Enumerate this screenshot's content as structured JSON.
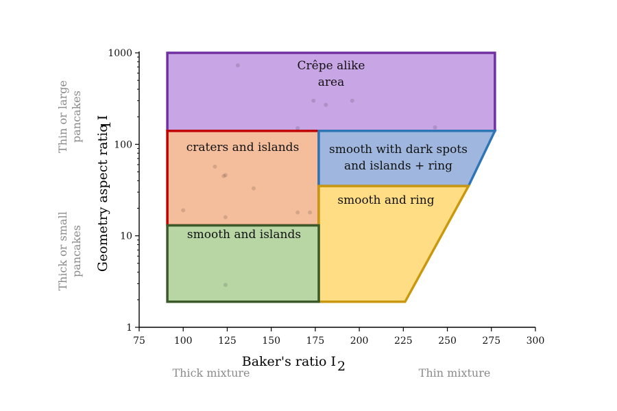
{
  "chart_data": {
    "type": "scatter",
    "xlabel": "Baker's ratio I",
    "xlabel_subscript": "2",
    "ylabel": "Geometry aspect ratio I",
    "ylabel_subscript": "1",
    "xlim": [
      75,
      300
    ],
    "ylim": [
      1,
      1000
    ],
    "yscale": "log",
    "x_ticks": [
      "75",
      "100",
      "125",
      "150",
      "175",
      "200",
      "225",
      "250",
      "275",
      "300"
    ],
    "y_ticks": [
      "1",
      "10",
      "100",
      "1000"
    ],
    "grid": false,
    "side_notes": {
      "y_high": [
        "Thin or large",
        "pancakes"
      ],
      "y_low": [
        "Thick or small",
        "pancakes"
      ],
      "x_low": "Thick mixture",
      "x_high": "Thin mixture"
    },
    "regions": [
      {
        "label": [
          "Crêpe alike",
          "area"
        ],
        "fill": "#c8a5e4",
        "stroke": "#7030a0",
        "polygon": [
          [
            91,
            1000
          ],
          [
            277,
            1000
          ],
          [
            277,
            140
          ],
          [
            91,
            140
          ]
        ]
      },
      {
        "label": [
          "craters and islands"
        ],
        "fill": "#f4be9c",
        "stroke": "#c00000",
        "polygon": [
          [
            91,
            140
          ],
          [
            177,
            140
          ],
          [
            177,
            13
          ],
          [
            91,
            13
          ]
        ]
      },
      {
        "label": [
          "smooth with dark spots",
          "and islands + ring"
        ],
        "fill": "#9fb7de",
        "stroke": "#2e75b6",
        "polygon": [
          [
            177,
            140
          ],
          [
            277,
            140
          ],
          [
            262,
            35
          ],
          [
            177,
            35
          ]
        ]
      },
      {
        "label": [
          "smooth and ring"
        ],
        "fill": "#ffdd84",
        "stroke": "#c9980e",
        "polygon": [
          [
            177,
            35
          ],
          [
            262,
            35
          ],
          [
            226,
            1.9
          ],
          [
            177,
            1.9
          ]
        ]
      },
      {
        "label": [
          "smooth and islands"
        ],
        "fill": "#b8d5a4",
        "stroke": "#3a5a2a",
        "polygon": [
          [
            91,
            13
          ],
          [
            177,
            13
          ],
          [
            177,
            1.9
          ],
          [
            91,
            1.9
          ]
        ]
      }
    ],
    "points": [
      {
        "x": 131,
        "y": 730
      },
      {
        "x": 174,
        "y": 300
      },
      {
        "x": 181,
        "y": 270
      },
      {
        "x": 196,
        "y": 300
      },
      {
        "x": 165,
        "y": 150
      },
      {
        "x": 243,
        "y": 153
      },
      {
        "x": 118,
        "y": 57
      },
      {
        "x": 123,
        "y": 45
      },
      {
        "x": 124,
        "y": 46
      },
      {
        "x": 140,
        "y": 33
      },
      {
        "x": 100,
        "y": 19
      },
      {
        "x": 165,
        "y": 18
      },
      {
        "x": 172,
        "y": 18
      },
      {
        "x": 124,
        "y": 16
      },
      {
        "x": 124,
        "y": 2.9
      }
    ]
  }
}
